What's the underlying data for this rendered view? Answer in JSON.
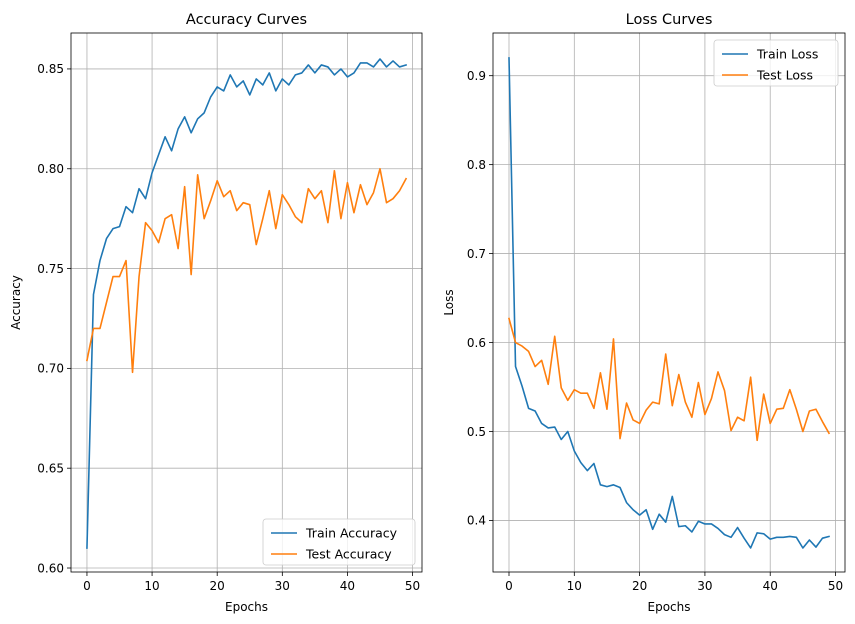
{
  "chart_data": [
    {
      "type": "line",
      "title": "Accuracy Curves",
      "xlabel": "Epochs",
      "ylabel": "Accuracy",
      "xlim": [
        -2.45,
        51.45
      ],
      "ylim": [
        0.598,
        0.868
      ],
      "xticks": [
        0,
        10,
        20,
        30,
        40,
        50
      ],
      "yticks": [
        0.6,
        0.65,
        0.7,
        0.75,
        0.8,
        0.85
      ],
      "ytick_decimals": 2,
      "grid": true,
      "legend_position": "lower right",
      "x": [
        0,
        1,
        2,
        3,
        4,
        5,
        6,
        7,
        8,
        9,
        10,
        11,
        12,
        13,
        14,
        15,
        16,
        17,
        18,
        19,
        20,
        21,
        22,
        23,
        24,
        25,
        26,
        27,
        28,
        29,
        30,
        31,
        32,
        33,
        34,
        35,
        36,
        37,
        38,
        39,
        40,
        41,
        42,
        43,
        44,
        45,
        46,
        47,
        48,
        49
      ],
      "series": [
        {
          "name": "Train Accuracy",
          "color": "#1f77b4",
          "values": [
            0.61,
            0.737,
            0.754,
            0.765,
            0.77,
            0.771,
            0.781,
            0.778,
            0.79,
            0.785,
            0.798,
            0.807,
            0.816,
            0.809,
            0.82,
            0.826,
            0.818,
            0.825,
            0.828,
            0.836,
            0.841,
            0.839,
            0.847,
            0.841,
            0.844,
            0.837,
            0.845,
            0.842,
            0.848,
            0.839,
            0.845,
            0.842,
            0.847,
            0.848,
            0.852,
            0.848,
            0.852,
            0.851,
            0.847,
            0.85,
            0.846,
            0.848,
            0.853,
            0.853,
            0.851,
            0.855,
            0.851,
            0.854,
            0.851,
            0.852
          ]
        },
        {
          "name": "Test Accuracy",
          "color": "#ff7f0e",
          "values": [
            0.704,
            0.72,
            0.72,
            0.733,
            0.746,
            0.746,
            0.754,
            0.698,
            0.746,
            0.773,
            0.769,
            0.763,
            0.775,
            0.777,
            0.76,
            0.791,
            0.747,
            0.797,
            0.775,
            0.784,
            0.794,
            0.786,
            0.789,
            0.779,
            0.783,
            0.782,
            0.762,
            0.775,
            0.789,
            0.77,
            0.787,
            0.782,
            0.776,
            0.773,
            0.79,
            0.785,
            0.789,
            0.773,
            0.799,
            0.775,
            0.793,
            0.778,
            0.792,
            0.782,
            0.788,
            0.8,
            0.783,
            0.785,
            0.789,
            0.795
          ]
        }
      ]
    },
    {
      "type": "line",
      "title": "Loss Curves",
      "xlabel": "Epochs",
      "ylabel": "Loss",
      "xlim": [
        -2.45,
        51.45
      ],
      "ylim": [
        0.342,
        0.948
      ],
      "xticks": [
        0,
        10,
        20,
        30,
        40,
        50
      ],
      "yticks": [
        0.4,
        0.5,
        0.6,
        0.7,
        0.8,
        0.9
      ],
      "ytick_decimals": 1,
      "grid": true,
      "legend_position": "upper right",
      "x": [
        0,
        1,
        2,
        3,
        4,
        5,
        6,
        7,
        8,
        9,
        10,
        11,
        12,
        13,
        14,
        15,
        16,
        17,
        18,
        19,
        20,
        21,
        22,
        23,
        24,
        25,
        26,
        27,
        28,
        29,
        30,
        31,
        32,
        33,
        34,
        35,
        36,
        37,
        38,
        39,
        40,
        41,
        42,
        43,
        44,
        45,
        46,
        47,
        48,
        49
      ],
      "series": [
        {
          "name": "Train Loss",
          "color": "#1f77b4",
          "values": [
            0.92,
            0.573,
            0.551,
            0.526,
            0.523,
            0.509,
            0.504,
            0.505,
            0.491,
            0.5,
            0.478,
            0.465,
            0.456,
            0.464,
            0.44,
            0.438,
            0.44,
            0.437,
            0.42,
            0.412,
            0.406,
            0.412,
            0.39,
            0.407,
            0.398,
            0.427,
            0.393,
            0.394,
            0.387,
            0.399,
            0.396,
            0.396,
            0.391,
            0.384,
            0.381,
            0.392,
            0.38,
            0.369,
            0.386,
            0.385,
            0.379,
            0.381,
            0.381,
            0.382,
            0.381,
            0.369,
            0.378,
            0.37,
            0.38,
            0.382
          ]
        },
        {
          "name": "Test Loss",
          "color": "#ff7f0e",
          "values": [
            0.627,
            0.6,
            0.596,
            0.59,
            0.573,
            0.58,
            0.553,
            0.607,
            0.549,
            0.535,
            0.547,
            0.543,
            0.543,
            0.526,
            0.566,
            0.525,
            0.604,
            0.492,
            0.532,
            0.513,
            0.509,
            0.524,
            0.533,
            0.531,
            0.587,
            0.529,
            0.564,
            0.533,
            0.516,
            0.555,
            0.519,
            0.537,
            0.567,
            0.546,
            0.501,
            0.516,
            0.512,
            0.561,
            0.49,
            0.542,
            0.509,
            0.525,
            0.526,
            0.547,
            0.525,
            0.5,
            0.523,
            0.525,
            0.511,
            0.498
          ]
        }
      ]
    }
  ]
}
